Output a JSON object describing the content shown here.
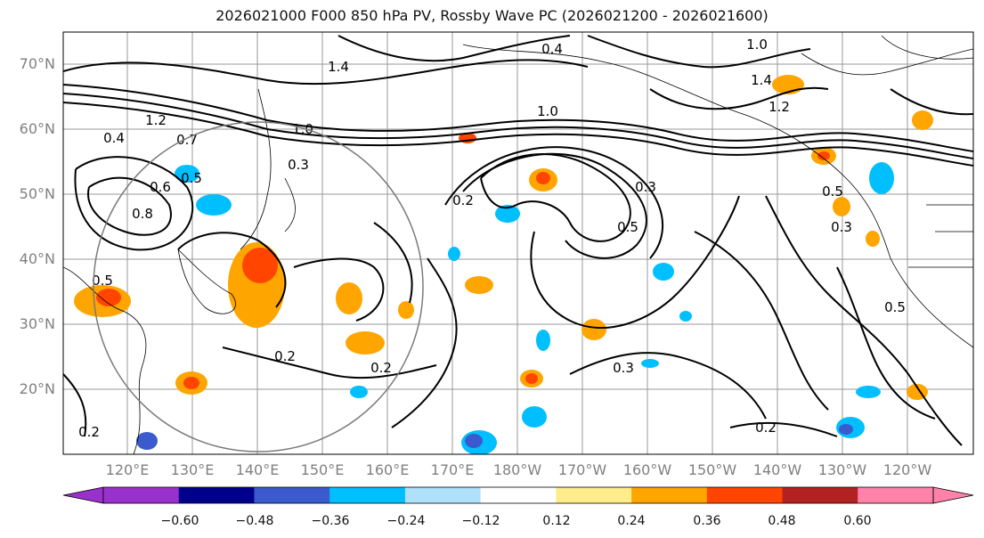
{
  "title": "2026021000 F000 850 hPa PV, Rossby Wave PC (2026021200 - 2026021600)",
  "lat_ticks": [
    "70°N",
    "60°N",
    "50°N",
    "40°N",
    "30°N",
    "20°N"
  ],
  "lon_ticks": [
    "120°E",
    "130°E",
    "140°E",
    "150°E",
    "160°E",
    "170°E",
    "180°W",
    "170°W",
    "160°W",
    "150°W",
    "140°W",
    "130°W",
    "120°W"
  ],
  "contour_labels": [
    "1.4",
    "1.2",
    "0.7",
    "0.4",
    "1.0",
    "0.8",
    "0.5",
    "1.0",
    "0.6",
    "0.3",
    "0.5",
    "0.2",
    "0.2",
    "0.2",
    "0.3",
    "0.2",
    "0.5",
    "0.3",
    "0.5",
    "1.0",
    "1.4",
    "1.2",
    "0.3",
    "0.5",
    "0.2",
    "0.4"
  ],
  "colorbar": {
    "labels": [
      "−0.60",
      "−0.48",
      "−0.36",
      "−0.24",
      "−0.12",
      "0.12",
      "0.24",
      "0.36",
      "0.48",
      "0.60"
    ],
    "colors": [
      "#9932cc",
      "#00008b",
      "#3a5acd",
      "#00bfff",
      "#afe1fa",
      "#ffffff",
      "#ffec8b",
      "#ffa500",
      "#ff4500",
      "#b22222",
      "#ff82ab"
    ]
  }
}
